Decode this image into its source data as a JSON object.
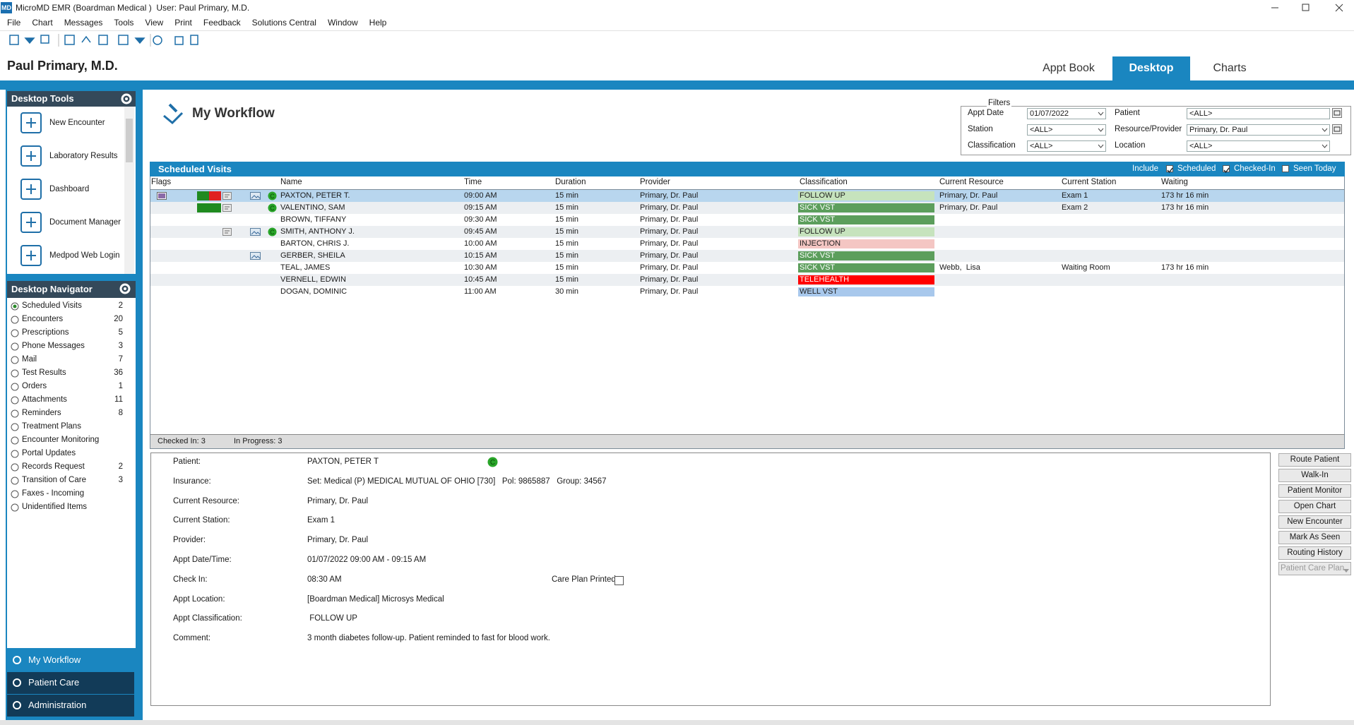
{
  "window": {
    "logo": "MD",
    "title": "MicroMD EMR (Boardman Medical )  User: Paul Primary, M.D."
  },
  "menu": [
    "File",
    "Chart",
    "Messages",
    "Tools",
    "View",
    "Print",
    "Feedback",
    "Solutions Central",
    "Window",
    "Help"
  ],
  "header": {
    "user": "Paul Primary, M.D.",
    "tabs": [
      "Appt Book",
      "Desktop",
      "Charts"
    ],
    "active_tab": 1
  },
  "desktop_tools": {
    "title": "Desktop Tools",
    "items": [
      "New Encounter",
      "Laboratory Results",
      "Dashboard",
      "Document Manager",
      "Medpod Web Login"
    ]
  },
  "desktop_navigator": {
    "title": "Desktop Navigator",
    "selected": 0,
    "items": [
      {
        "label": "Scheduled Visits",
        "count": 2
      },
      {
        "label": "Encounters",
        "count": 20
      },
      {
        "label": "Prescriptions",
        "count": 5
      },
      {
        "label": "Phone Messages",
        "count": 3
      },
      {
        "label": "Mail",
        "count": 7
      },
      {
        "label": "Test Results",
        "count": 36
      },
      {
        "label": "Orders",
        "count": 1
      },
      {
        "label": "Attachments",
        "count": 11
      },
      {
        "label": "Reminders",
        "count": 8
      },
      {
        "label": "Treatment Plans"
      },
      {
        "label": "Encounter Monitoring"
      },
      {
        "label": "Portal Updates"
      },
      {
        "label": "Records Request",
        "count": 2
      },
      {
        "label": "Transition of Care",
        "count": 3
      },
      {
        "label": "Faxes - Incoming"
      },
      {
        "label": "Unidentified Items"
      }
    ]
  },
  "bottom_nav": {
    "items": [
      "My Workflow",
      "Patient Care",
      "Administration"
    ],
    "selected": 0
  },
  "workflow": {
    "title": "My Workflow"
  },
  "filters": {
    "legend": "Filters",
    "fields": [
      {
        "label": "Appt Date",
        "value": "01/07/2022"
      },
      {
        "label": "Patient",
        "value": "<ALL>"
      },
      {
        "label": "Station",
        "value": "<ALL>"
      },
      {
        "label": "Resource/Provider",
        "value": "Primary, Dr. Paul"
      },
      {
        "label": "Classification",
        "value": "<ALL>"
      },
      {
        "label": "Location",
        "value": "<ALL>"
      }
    ]
  },
  "grid": {
    "title": "Scheduled Visits",
    "include_label": "Include",
    "checks": [
      {
        "label": "Scheduled",
        "checked": true
      },
      {
        "label": "Checked-In",
        "checked": true
      },
      {
        "label": "Seen Today",
        "checked": false
      }
    ],
    "columns": [
      "Flags",
      "Name",
      "Time",
      "Duration",
      "Provider",
      "Classification",
      "Current Resource",
      "Current Station",
      "Waiting"
    ],
    "selected_row": 0,
    "rows": [
      {
        "name": "PAXTON, PETER T.",
        "time": "09:00 AM",
        "duration": "15 min",
        "provider": "Primary, Dr. Paul",
        "classification": "FOLLOW UP",
        "class_color": "#c6e3bd",
        "resource": "Primary, Dr. Paul",
        "station": "Exam 1",
        "waiting": "173 hr 16 min"
      },
      {
        "name": "VALENTINO, SAM",
        "time": "09:15 AM",
        "duration": "15 min",
        "provider": "Primary, Dr. Paul",
        "classification": "SICK VST",
        "class_color": "#5c9e5c",
        "resource": "Primary, Dr. Paul",
        "station": "Exam 2",
        "waiting": "173 hr 16 min"
      },
      {
        "name": "BROWN, TIFFANY",
        "time": "09:30 AM",
        "duration": "15 min",
        "provider": "Primary, Dr. Paul",
        "classification": "SICK VST",
        "class_color": "#5c9e5c"
      },
      {
        "name": "SMITH, ANTHONY J.",
        "time": "09:45 AM",
        "duration": "15 min",
        "provider": "Primary, Dr. Paul",
        "classification": "FOLLOW UP",
        "class_color": "#c6e3bd"
      },
      {
        "name": "BARTON, CHRIS J.",
        "time": "10:00 AM",
        "duration": "15 min",
        "provider": "Primary, Dr. Paul",
        "classification": "INJECTION",
        "class_color": "#f4c6c3"
      },
      {
        "name": "GERBER, SHEILA",
        "time": "10:15 AM",
        "duration": "15 min",
        "provider": "Primary, Dr. Paul",
        "classification": "SICK VST",
        "class_color": "#5c9e5c"
      },
      {
        "name": "TEAL, JAMES",
        "time": "10:30 AM",
        "duration": "15 min",
        "provider": "Primary, Dr. Paul",
        "classification": "SICK VST",
        "class_color": "#5c9e5c",
        "resource": "Webb,  Lisa",
        "station": "Waiting Room",
        "waiting": "173 hr 16 min"
      },
      {
        "name": "VERNELL, EDWIN",
        "time": "10:45 AM",
        "duration": "15 min",
        "provider": "Primary, Dr. Paul",
        "classification": "TELEHEALTH",
        "class_color": "#ff0000"
      },
      {
        "name": "DOGAN, DOMINIC",
        "time": "11:00 AM",
        "duration": "30 min",
        "provider": "Primary, Dr. Paul",
        "classification": "WELL VST",
        "class_color": "#a8c8ec"
      }
    ],
    "status": [
      "Checked In: 3",
      "In Progress: 3"
    ]
  },
  "detail": {
    "fields": [
      {
        "label": "Patient:",
        "value": "PAXTON, PETER T"
      },
      {
        "label": "Insurance:",
        "value": "Set: Medical (P) MEDICAL MUTUAL OF OHIO [730]   Pol: 9865887   Group: 34567"
      },
      {
        "label": "Current Resource:",
        "value": "Primary, Dr. Paul"
      },
      {
        "label": "Current Station:",
        "value": "Exam 1"
      },
      {
        "label": "Provider:",
        "value": "Primary, Dr. Paul"
      },
      {
        "label": "Appt Date/Time:",
        "value": "01/07/2022 09:00 AM - 09:15 AM"
      },
      {
        "label": "Check In:",
        "value": "08:30 AM"
      },
      {
        "label": "Appt Location:",
        "value": "[Boardman Medical] Microsys Medical"
      },
      {
        "label": "Appt Classification:",
        "value": " FOLLOW UP"
      },
      {
        "label": "Comment:",
        "value": "3 month diabetes follow-up. Patient reminded to fast for blood work."
      }
    ],
    "care_plan_label": "Care Plan Printed"
  },
  "buttons": [
    "Route Patient",
    "Walk-In",
    "Patient Monitor",
    "Open Chart",
    "New Encounter",
    "Mark As Seen",
    "Routing History",
    "Patient Care Plan"
  ]
}
